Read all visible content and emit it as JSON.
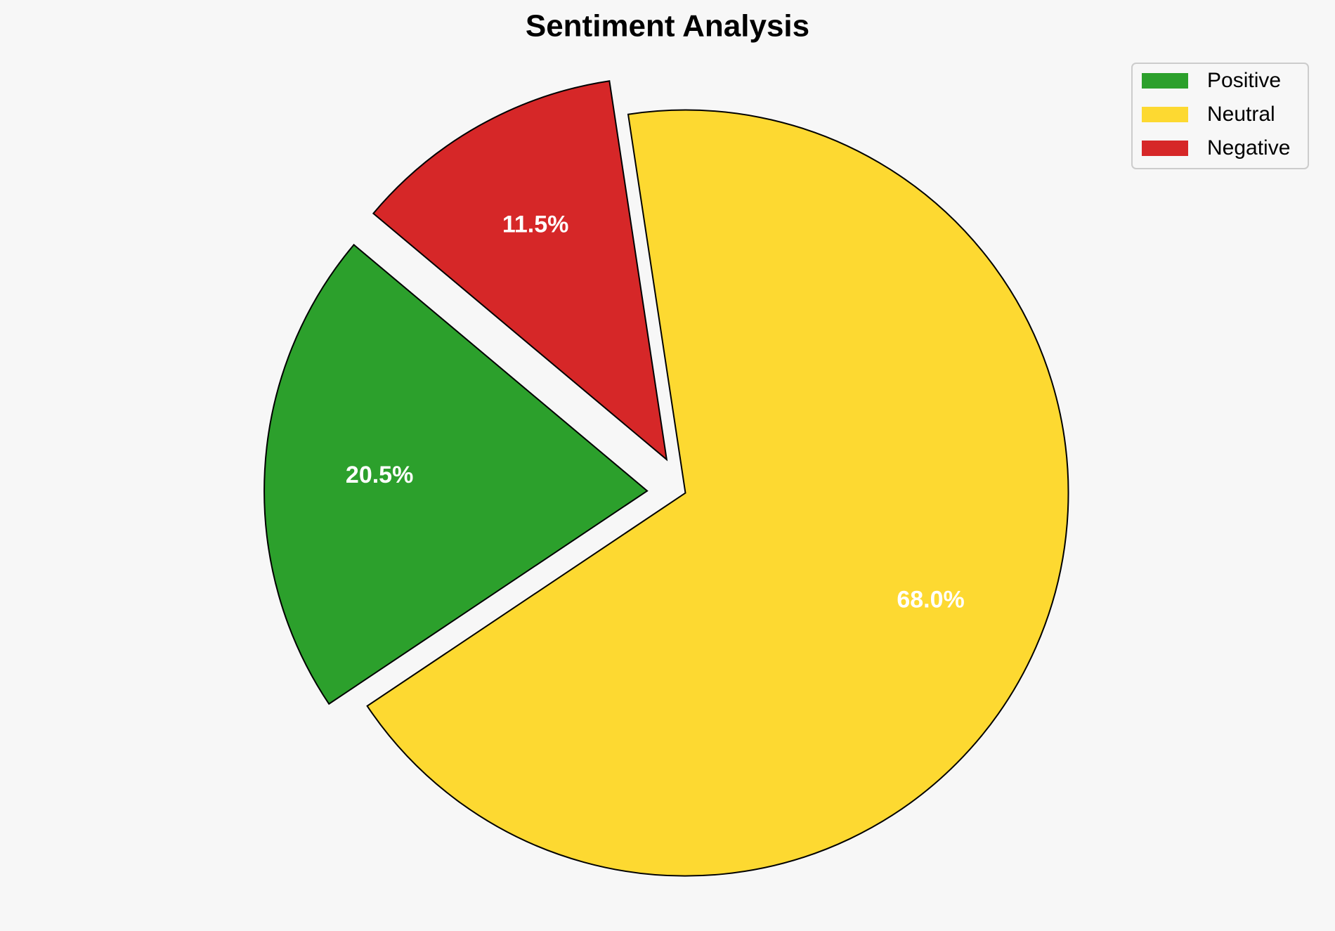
{
  "chart_data": {
    "type": "pie",
    "title": "Sentiment Analysis",
    "categories": [
      "Positive",
      "Neutral",
      "Negative"
    ],
    "values": [
      20.5,
      68.0,
      11.5
    ],
    "value_labels": [
      "20.5%",
      "68.0%",
      "11.5%"
    ],
    "colors": [
      "#2ca02c",
      "#fdd931",
      "#d62728"
    ],
    "legend": "upper right"
  }
}
